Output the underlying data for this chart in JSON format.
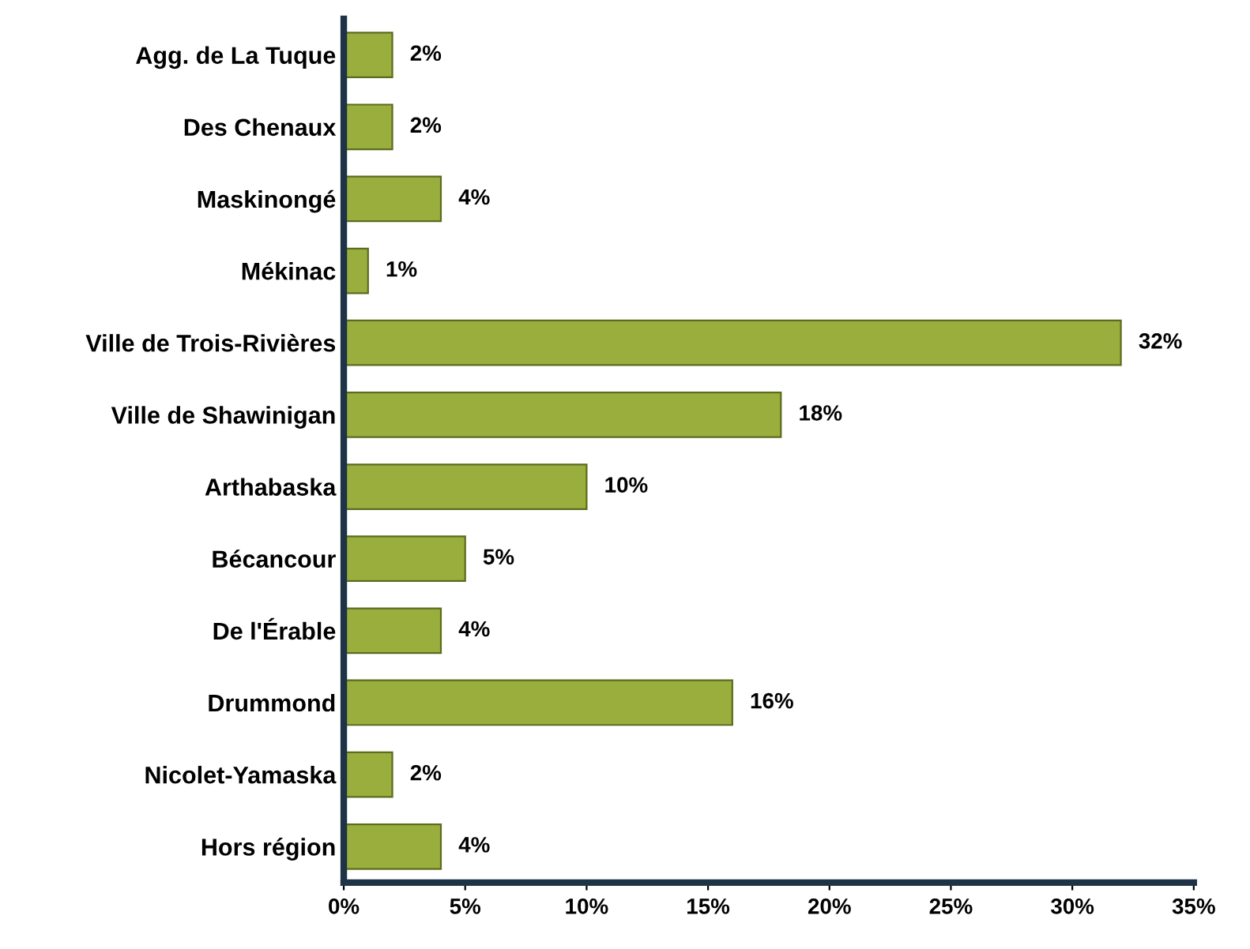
{
  "chart_data": {
    "type": "bar",
    "orientation": "horizontal",
    "categories": [
      "Agg. de La Tuque",
      "Des Chenaux",
      "Maskinongé",
      "Mékinac",
      "Ville de Trois-Rivières",
      "Ville de Shawinigan",
      "Arthabaska",
      "Bécancour",
      "De l'Érable",
      "Drummond",
      "Nicolet-Yamaska",
      "Hors région"
    ],
    "values": [
      2,
      2,
      4,
      1,
      32,
      18,
      10,
      5,
      4,
      16,
      2,
      4
    ],
    "value_labels": [
      "2%",
      "2%",
      "4%",
      "1%",
      "32%",
      "18%",
      "10%",
      "5%",
      "4%",
      "16%",
      "2%",
      "4%"
    ],
    "color": "#9aae3e",
    "xlim": [
      0,
      35
    ],
    "xticks": [
      {
        "value": 0,
        "label": "0%"
      },
      {
        "value": 5,
        "label": "5%"
      },
      {
        "value": 10,
        "label": "10%"
      },
      {
        "value": 15,
        "label": "15%"
      },
      {
        "value": 20,
        "label": "20%"
      },
      {
        "value": 25,
        "label": "25%"
      },
      {
        "value": 30,
        "label": "30%"
      },
      {
        "value": 35,
        "label": "35%"
      }
    ],
    "grid": false
  }
}
